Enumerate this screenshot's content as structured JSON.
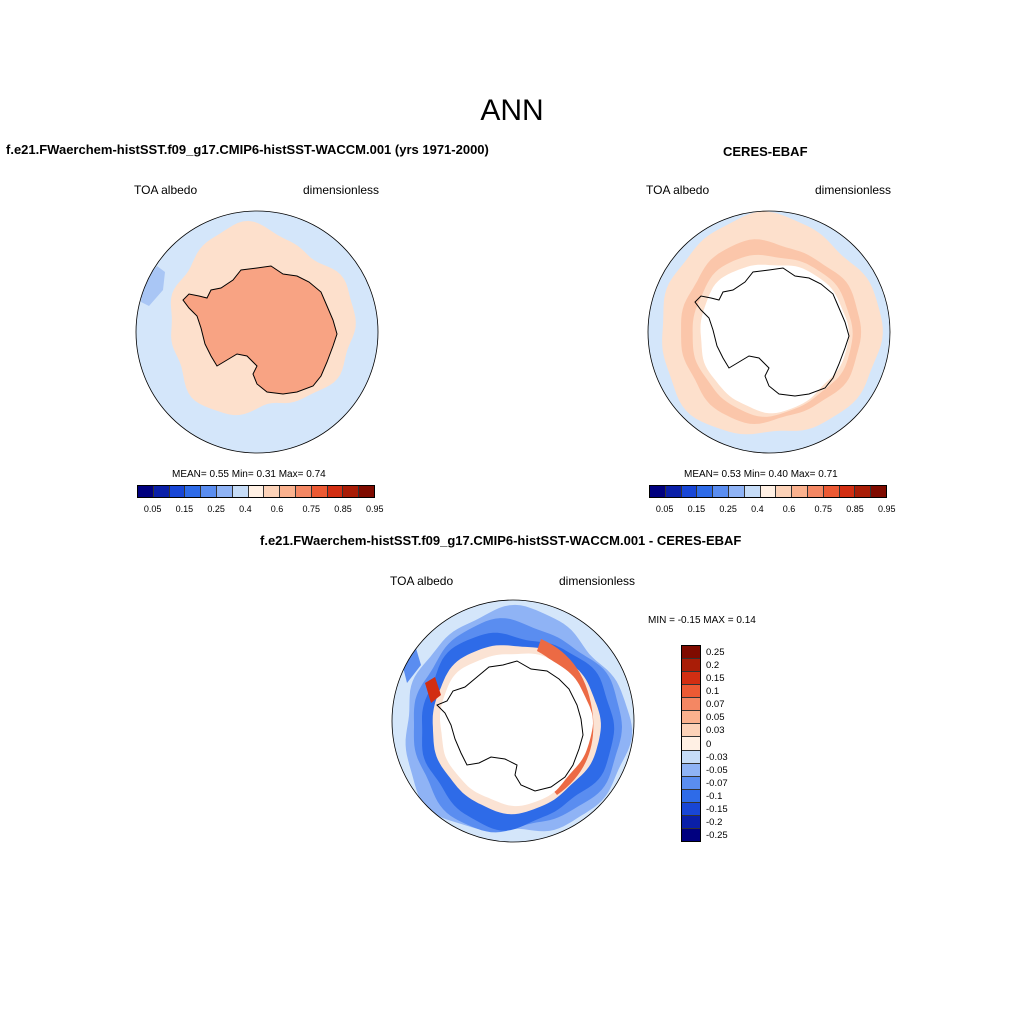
{
  "main_title": "ANN",
  "panels": [
    {
      "title": "f.e21.FWaerchem-histSST.f09_g17.CMIP6-histSST-WACCM.001 (yrs 1971-2000)",
      "left_label": "TOA albedo",
      "right_label": "dimensionless",
      "stats": "MEAN=   0.55  Min=   0.31  Max=   0.74"
    },
    {
      "title": "CERES-EBAF",
      "left_label": "TOA albedo",
      "right_label": "dimensionless",
      "stats": "MEAN=   0.53  Min=   0.40  Max=   0.71"
    },
    {
      "title": "f.e21.FWaerchem-histSST.f09_g17.CMIP6-histSST-WACCM.001 - CERES-EBAF",
      "left_label": "TOA albedo",
      "right_label": "dimensionless",
      "stats": "MIN =  -0.15 MAX =   0.14"
    }
  ],
  "colorbar_main": {
    "colors": [
      "#00007f",
      "#0a1fa8",
      "#1846d6",
      "#2e6be8",
      "#5a8df0",
      "#8fb3f5",
      "#c6dcf7",
      "#fff0e4",
      "#fcd2b8",
      "#fab18e",
      "#f48763",
      "#ec5a34",
      "#d22e12",
      "#a91d07",
      "#7f0b00"
    ],
    "labels": [
      "0.05",
      "0.15",
      "0.25",
      "0.4",
      "0.6",
      "0.75",
      "0.85",
      "0.95"
    ]
  },
  "colorbar_diff": {
    "colors": [
      "#7f0b00",
      "#a91d07",
      "#d22e12",
      "#ec5a34",
      "#f48763",
      "#fab18e",
      "#fcd2b8",
      "#fff0e4",
      "#c6dcf7",
      "#8fb3f5",
      "#5a8df0",
      "#2e6be8",
      "#1846d6",
      "#0a1fa8",
      "#00007f"
    ],
    "labels": [
      "0.25",
      "0.2",
      "0.15",
      "0.1",
      "0.07",
      "0.05",
      "0.03",
      "0",
      "-0.03",
      "-0.05",
      "-0.07",
      "-0.1",
      "-0.15",
      "-0.2",
      "-0.25"
    ]
  },
  "map_colors": {
    "ocean_light": "#d4e6fa",
    "albedo_mid": "#fde0cc",
    "albedo_high": "#fab18e",
    "albedo_higher": "#f8a383",
    "diff_blue": "#2e6be8",
    "diff_blue_mid": "#5a8df0",
    "diff_blue_light": "#8fb3f5",
    "diff_red": "#ec6a44",
    "diff_pale": "#fbe3d4"
  }
}
